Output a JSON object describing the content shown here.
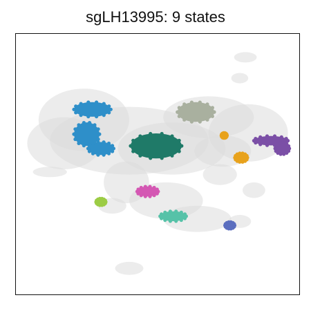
{
  "chart_data": {
    "type": "scatter",
    "title": "sgLH13995: 9 states",
    "xlabel": "",
    "ylabel": "",
    "xlim": [
      0,
      100
    ],
    "ylim": [
      0,
      100
    ],
    "axes_ticks": false,
    "grid": false,
    "legend": "none",
    "background_color": "#dddddd",
    "background_regions": [
      {
        "cx": 40,
        "cy": 59,
        "rx": 28,
        "ry": 13
      },
      {
        "cx": 24,
        "cy": 67,
        "rx": 16,
        "ry": 12
      },
      {
        "cx": 17,
        "cy": 58,
        "rx": 13,
        "ry": 10
      },
      {
        "cx": 55,
        "cy": 56,
        "rx": 19,
        "ry": 10
      },
      {
        "cx": 68,
        "cy": 68,
        "rx": 16,
        "ry": 8
      },
      {
        "cx": 82,
        "cy": 62,
        "rx": 14,
        "ry": 11
      },
      {
        "cx": 73,
        "cy": 55,
        "rx": 10,
        "ry": 6
      },
      {
        "cx": 39,
        "cy": 43,
        "rx": 8,
        "ry": 8
      },
      {
        "cx": 53,
        "cy": 36,
        "rx": 13,
        "ry": 7
      },
      {
        "cx": 64,
        "cy": 29,
        "rx": 12,
        "ry": 5
      },
      {
        "cx": 79,
        "cy": 28,
        "rx": 4,
        "ry": 2.5
      },
      {
        "cx": 72,
        "cy": 46,
        "rx": 6,
        "ry": 4
      },
      {
        "cx": 84,
        "cy": 40,
        "rx": 4,
        "ry": 3
      },
      {
        "cx": 12,
        "cy": 47,
        "rx": 6,
        "ry": 2
      },
      {
        "cx": 34,
        "cy": 34,
        "rx": 5,
        "ry": 3
      },
      {
        "cx": 40,
        "cy": 10,
        "rx": 5,
        "ry": 2.5
      },
      {
        "cx": 79,
        "cy": 83,
        "rx": 3,
        "ry": 2
      },
      {
        "cx": 81,
        "cy": 91,
        "rx": 4,
        "ry": 2
      }
    ],
    "series": [
      {
        "color": "#2e8fc9",
        "clusters": [
          {
            "cx": 27,
            "cy": 71,
            "rx": 6.5,
            "ry": 2.8
          },
          {
            "cx": 25,
            "cy": 61.5,
            "rx": 4.5,
            "ry": 4.5
          },
          {
            "cx": 30,
            "cy": 56,
            "rx": 4.5,
            "ry": 2.5
          }
        ]
      },
      {
        "color": "#1f7a68",
        "clusters": [
          {
            "cx": 49.5,
            "cy": 57,
            "rx": 9,
            "ry": 4.8
          }
        ]
      },
      {
        "color": "#a9b09f",
        "clusters": [
          {
            "cx": 63.5,
            "cy": 70,
            "rx": 6.5,
            "ry": 3.8
          }
        ]
      },
      {
        "color": "#7b4fa6",
        "clusters": [
          {
            "cx": 90,
            "cy": 59,
            "rx": 6,
            "ry": 1.8
          },
          {
            "cx": 94,
            "cy": 56,
            "rx": 2.5,
            "ry": 2.2
          }
        ]
      },
      {
        "color": "#e8a21c",
        "clusters": [
          {
            "cx": 79.5,
            "cy": 52.5,
            "rx": 2.2,
            "ry": 1.7
          },
          {
            "cx": 73.5,
            "cy": 61,
            "rx": 1.0,
            "ry": 1.0
          }
        ]
      },
      {
        "color": "#d457b3",
        "clusters": [
          {
            "cx": 46.5,
            "cy": 39.5,
            "rx": 3.7,
            "ry": 1.9
          }
        ]
      },
      {
        "color": "#56c2a8",
        "clusters": [
          {
            "cx": 55.5,
            "cy": 30,
            "rx": 4.6,
            "ry": 1.9
          }
        ]
      },
      {
        "color": "#9ccc45",
        "clusters": [
          {
            "cx": 30,
            "cy": 35.5,
            "rx": 1.7,
            "ry": 1.3
          }
        ]
      },
      {
        "color": "#5b6ebf",
        "clusters": [
          {
            "cx": 75.5,
            "cy": 26.5,
            "rx": 1.7,
            "ry": 1.3
          }
        ]
      }
    ]
  }
}
